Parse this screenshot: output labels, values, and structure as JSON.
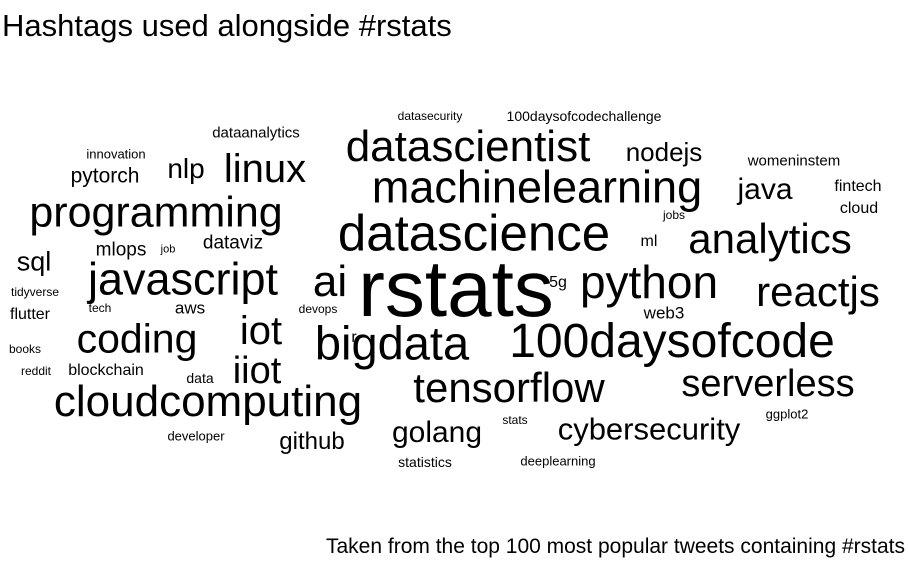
{
  "chart_data": {
    "type": "wordcloud",
    "title": "Hashtags used alongside #rstats",
    "caption": "Taken from the top 100 most popular tweets containing #rstats",
    "words": [
      {
        "text": "rstats",
        "weight": 100
      },
      {
        "text": "100daysofcode",
        "weight": 55
      },
      {
        "text": "datascience",
        "weight": 54
      },
      {
        "text": "machinelearning",
        "weight": 46
      },
      {
        "text": "python",
        "weight": 46
      },
      {
        "text": "javascript",
        "weight": 45
      },
      {
        "text": "ai",
        "weight": 45
      },
      {
        "text": "bigdata",
        "weight": 44
      },
      {
        "text": "cloudcomputing",
        "weight": 43
      },
      {
        "text": "datascientist",
        "weight": 42
      },
      {
        "text": "programming",
        "weight": 42
      },
      {
        "text": "tensorflow",
        "weight": 41
      },
      {
        "text": "analytics",
        "weight": 41
      },
      {
        "text": "reactjs",
        "weight": 41
      },
      {
        "text": "linux",
        "weight": 40
      },
      {
        "text": "iot",
        "weight": 40
      },
      {
        "text": "coding",
        "weight": 40
      },
      {
        "text": "serverless",
        "weight": 38
      },
      {
        "text": "iiot",
        "weight": 38
      },
      {
        "text": "golang",
        "weight": 32
      },
      {
        "text": "cybersecurity",
        "weight": 30
      },
      {
        "text": "java",
        "weight": 30
      },
      {
        "text": "nlp",
        "weight": 28
      },
      {
        "text": "nodejs",
        "weight": 26
      },
      {
        "text": "sql",
        "weight": 26
      },
      {
        "text": "github",
        "weight": 23
      },
      {
        "text": "pytorch",
        "weight": 21
      },
      {
        "text": "dataviz",
        "weight": 19
      },
      {
        "text": "mlops",
        "weight": 19
      },
      {
        "text": "blockchain",
        "weight": 16
      },
      {
        "text": "aws",
        "weight": 17
      },
      {
        "text": "5g",
        "weight": 17
      },
      {
        "text": "fintech",
        "weight": 16
      },
      {
        "text": "cloud",
        "weight": 16
      },
      {
        "text": "web3",
        "weight": 17
      },
      {
        "text": "flutter",
        "weight": 16
      },
      {
        "text": "ml",
        "weight": 16
      },
      {
        "text": "r",
        "weight": 16
      },
      {
        "text": "womeninstem",
        "weight": 15
      },
      {
        "text": "dataanalytics",
        "weight": 15
      },
      {
        "text": "data",
        "weight": 14
      },
      {
        "text": "statistics",
        "weight": 14
      },
      {
        "text": "100daysofcodechallenge",
        "weight": 13
      },
      {
        "text": "datasecurity",
        "weight": 12
      },
      {
        "text": "innovation",
        "weight": 13
      },
      {
        "text": "developer",
        "weight": 13
      },
      {
        "text": "deeplearning",
        "weight": 13
      },
      {
        "text": "ggplot2",
        "weight": 13
      },
      {
        "text": "stats",
        "weight": 12
      },
      {
        "text": "jobs",
        "weight": 12
      },
      {
        "text": "tidyverse",
        "weight": 12
      },
      {
        "text": "books",
        "weight": 12
      },
      {
        "text": "reddit",
        "weight": 12
      },
      {
        "text": "tech",
        "weight": 12
      },
      {
        "text": "devops",
        "weight": 12
      },
      {
        "text": "job",
        "weight": 11
      }
    ]
  }
}
